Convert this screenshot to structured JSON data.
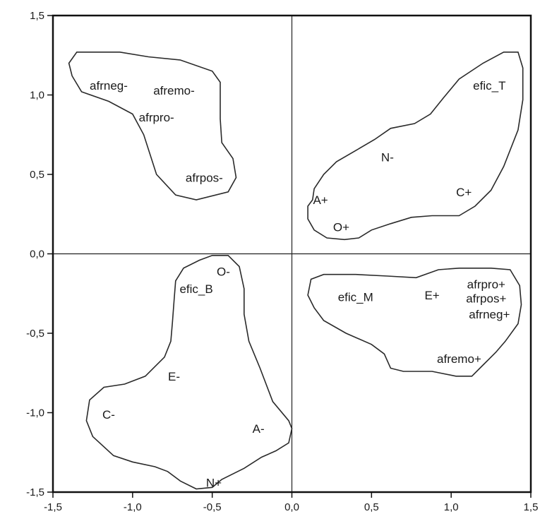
{
  "chart_data": {
    "type": "scatter",
    "title": "",
    "xlabel": "",
    "ylabel": "",
    "xlim": [
      -1.5,
      1.5
    ],
    "ylim": [
      -1.5,
      1.5
    ],
    "x_ticks": [
      -1.5,
      -1.0,
      -0.5,
      0.0,
      0.5,
      1.0,
      1.5
    ],
    "y_ticks": [
      -1.5,
      -1.0,
      -0.5,
      0.0,
      0.5,
      1.0,
      1.5
    ],
    "x_tick_labels": [
      "-1,5",
      "-1,0",
      "-0,5",
      "0,0",
      "0,5",
      "1,0",
      "1,5"
    ],
    "y_tick_labels": [
      "-1,5",
      "-1,0",
      "-0,5",
      "0,0",
      "0,5",
      "1,0",
      "1,5"
    ],
    "reference_lines": {
      "x": 0,
      "y": 0
    },
    "grid": false,
    "points": [
      {
        "label": "afrneg-",
        "x": -1.15,
        "y": 1.06
      },
      {
        "label": "afremo-",
        "x": -0.74,
        "y": 1.03
      },
      {
        "label": "afrpro-",
        "x": -0.85,
        "y": 0.86
      },
      {
        "label": "afrpos-",
        "x": -0.55,
        "y": 0.48
      },
      {
        "label": "efic_T",
        "x": 1.24,
        "y": 1.06
      },
      {
        "label": "N-",
        "x": 0.6,
        "y": 0.61
      },
      {
        "label": "A+",
        "x": 0.18,
        "y": 0.34
      },
      {
        "label": "C+",
        "x": 1.08,
        "y": 0.39
      },
      {
        "label": "O+",
        "x": 0.31,
        "y": 0.17
      },
      {
        "label": "O-",
        "x": -0.43,
        "y": -0.11
      },
      {
        "label": "efic_B",
        "x": -0.6,
        "y": -0.22
      },
      {
        "label": "E-",
        "x": -0.74,
        "y": -0.77
      },
      {
        "label": "C-",
        "x": -1.15,
        "y": -1.01
      },
      {
        "label": "A-",
        "x": -0.21,
        "y": -1.1
      },
      {
        "label": "N+",
        "x": -0.49,
        "y": -1.44
      },
      {
        "label": "efic_M",
        "x": 0.4,
        "y": -0.27
      },
      {
        "label": "E+",
        "x": 0.88,
        "y": -0.26
      },
      {
        "label": "afrpro+",
        "x": 1.22,
        "y": -0.19
      },
      {
        "label": "afrpos+",
        "x": 1.22,
        "y": -0.28
      },
      {
        "label": "afrneg+",
        "x": 1.24,
        "y": -0.38
      },
      {
        "label": "afremo+",
        "x": 1.05,
        "y": -0.66
      }
    ],
    "clusters": [
      {
        "boundary": [
          [
            -1.4,
            1.2
          ],
          [
            -1.35,
            1.27
          ],
          [
            -1.08,
            1.27
          ],
          [
            -0.9,
            1.24
          ],
          [
            -0.7,
            1.22
          ],
          [
            -0.5,
            1.15
          ],
          [
            -0.45,
            1.08
          ],
          [
            -0.45,
            0.85
          ],
          [
            -0.44,
            0.7
          ],
          [
            -0.37,
            0.6
          ],
          [
            -0.35,
            0.48
          ],
          [
            -0.4,
            0.39
          ],
          [
            -0.6,
            0.34
          ],
          [
            -0.73,
            0.37
          ],
          [
            -0.85,
            0.5
          ],
          [
            -0.93,
            0.75
          ],
          [
            -1.0,
            0.88
          ],
          [
            -1.15,
            0.96
          ],
          [
            -1.32,
            1.02
          ],
          [
            -1.38,
            1.12
          ],
          [
            -1.4,
            1.2
          ]
        ]
      },
      {
        "boundary": [
          [
            0.13,
            0.34
          ],
          [
            0.14,
            0.41
          ],
          [
            0.2,
            0.5
          ],
          [
            0.28,
            0.58
          ],
          [
            0.4,
            0.65
          ],
          [
            0.52,
            0.72
          ],
          [
            0.62,
            0.79
          ],
          [
            0.77,
            0.82
          ],
          [
            0.87,
            0.88
          ],
          [
            0.95,
            0.98
          ],
          [
            1.05,
            1.1
          ],
          [
            1.2,
            1.2
          ],
          [
            1.33,
            1.27
          ],
          [
            1.42,
            1.27
          ],
          [
            1.45,
            1.17
          ],
          [
            1.45,
            0.97
          ],
          [
            1.42,
            0.78
          ],
          [
            1.33,
            0.55
          ],
          [
            1.25,
            0.4
          ],
          [
            1.15,
            0.3
          ],
          [
            1.05,
            0.24
          ],
          [
            0.88,
            0.24
          ],
          [
            0.75,
            0.23
          ],
          [
            0.62,
            0.19
          ],
          [
            0.5,
            0.15
          ],
          [
            0.42,
            0.1
          ],
          [
            0.33,
            0.09
          ],
          [
            0.22,
            0.1
          ],
          [
            0.14,
            0.15
          ],
          [
            0.1,
            0.22
          ],
          [
            0.1,
            0.3
          ],
          [
            0.13,
            0.34
          ]
        ]
      },
      {
        "boundary": [
          [
            -0.5,
            -0.01
          ],
          [
            -0.4,
            -0.01
          ],
          [
            -0.33,
            -0.08
          ],
          [
            -0.3,
            -0.22
          ],
          [
            -0.3,
            -0.38
          ],
          [
            -0.27,
            -0.55
          ],
          [
            -0.2,
            -0.72
          ],
          [
            -0.12,
            -0.93
          ],
          [
            -0.02,
            -1.05
          ],
          [
            0.0,
            -1.1
          ],
          [
            -0.02,
            -1.19
          ],
          [
            -0.1,
            -1.24
          ],
          [
            -0.19,
            -1.28
          ],
          [
            -0.3,
            -1.35
          ],
          [
            -0.44,
            -1.42
          ],
          [
            -0.5,
            -1.47
          ],
          [
            -0.6,
            -1.48
          ],
          [
            -0.7,
            -1.43
          ],
          [
            -0.78,
            -1.37
          ],
          [
            -0.86,
            -1.34
          ],
          [
            -1.0,
            -1.31
          ],
          [
            -1.12,
            -1.27
          ],
          [
            -1.25,
            -1.15
          ],
          [
            -1.29,
            -1.05
          ],
          [
            -1.27,
            -0.92
          ],
          [
            -1.18,
            -0.84
          ],
          [
            -1.05,
            -0.82
          ],
          [
            -0.92,
            -0.77
          ],
          [
            -0.86,
            -0.71
          ],
          [
            -0.8,
            -0.65
          ],
          [
            -0.76,
            -0.55
          ],
          [
            -0.75,
            -0.43
          ],
          [
            -0.74,
            -0.3
          ],
          [
            -0.73,
            -0.17
          ],
          [
            -0.68,
            -0.09
          ],
          [
            -0.58,
            -0.04
          ],
          [
            -0.5,
            -0.01
          ]
        ]
      },
      {
        "boundary": [
          [
            0.12,
            -0.16
          ],
          [
            0.1,
            -0.26
          ],
          [
            0.14,
            -0.34
          ],
          [
            0.2,
            -0.42
          ],
          [
            0.34,
            -0.5
          ],
          [
            0.5,
            -0.57
          ],
          [
            0.58,
            -0.63
          ],
          [
            0.62,
            -0.72
          ],
          [
            0.7,
            -0.74
          ],
          [
            0.88,
            -0.74
          ],
          [
            1.03,
            -0.77
          ],
          [
            1.13,
            -0.77
          ],
          [
            1.2,
            -0.7
          ],
          [
            1.28,
            -0.62
          ],
          [
            1.34,
            -0.55
          ],
          [
            1.42,
            -0.44
          ],
          [
            1.44,
            -0.32
          ],
          [
            1.43,
            -0.2
          ],
          [
            1.37,
            -0.1
          ],
          [
            1.25,
            -0.09
          ],
          [
            1.05,
            -0.09
          ],
          [
            0.92,
            -0.1
          ],
          [
            0.78,
            -0.15
          ],
          [
            0.6,
            -0.14
          ],
          [
            0.4,
            -0.13
          ],
          [
            0.2,
            -0.13
          ],
          [
            0.12,
            -0.16
          ]
        ]
      }
    ]
  }
}
